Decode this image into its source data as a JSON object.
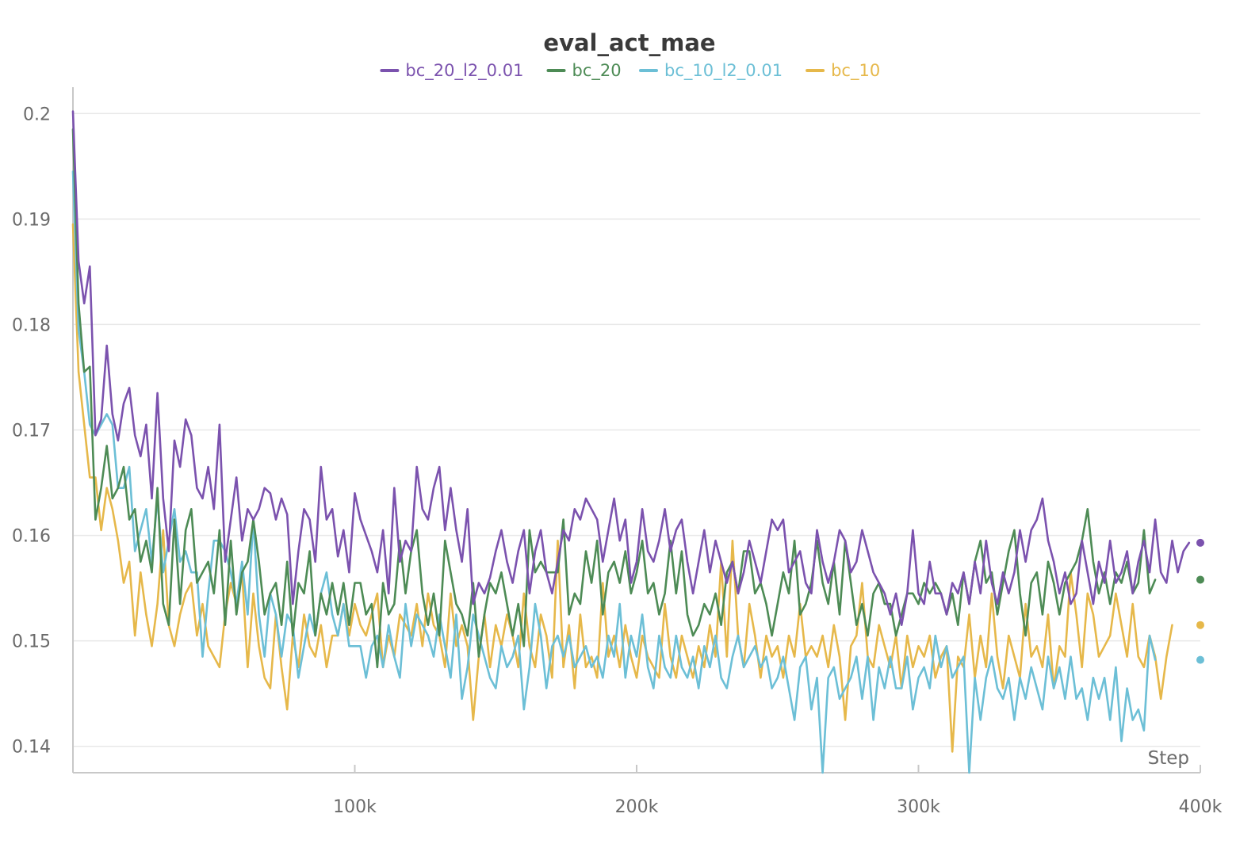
{
  "chart_data": {
    "type": "line",
    "title": "eval_act_mae",
    "xlabel": "Step",
    "ylabel": "",
    "xlim": [
      0,
      400000
    ],
    "ylim": [
      0.1375,
      0.2025
    ],
    "x_ticks": [
      100000,
      200000,
      300000,
      400000
    ],
    "x_tick_labels": [
      "100k",
      "200k",
      "300k",
      "400k"
    ],
    "y_ticks": [
      0.14,
      0.15,
      0.16,
      0.17,
      0.18,
      0.19,
      0.2
    ],
    "y_tick_labels": [
      "0.14",
      "0.15",
      "0.16",
      "0.17",
      "0.18",
      "0.19",
      "0.2"
    ],
    "grid": true,
    "legend_position": "top-center",
    "x_step": 2000,
    "series": [
      {
        "name": "bc_20_l2_0.01",
        "color": "#7b52ae",
        "values": [
          0.2002,
          0.186,
          0.182,
          0.1855,
          0.1695,
          0.171,
          0.178,
          0.1715,
          0.169,
          0.1725,
          0.174,
          0.1695,
          0.1675,
          0.1705,
          0.1635,
          0.1735,
          0.1635,
          0.1585,
          0.169,
          0.1665,
          0.171,
          0.1695,
          0.1645,
          0.1635,
          0.1665,
          0.1625,
          0.1705,
          0.1575,
          0.1615,
          0.1655,
          0.1595,
          0.1625,
          0.1615,
          0.1625,
          0.1645,
          0.164,
          0.1615,
          0.1635,
          0.162,
          0.1535,
          0.1585,
          0.1625,
          0.1615,
          0.1575,
          0.1665,
          0.1615,
          0.1625,
          0.158,
          0.1605,
          0.1565,
          0.164,
          0.1615,
          0.16,
          0.1585,
          0.1565,
          0.1605,
          0.1545,
          0.1645,
          0.1575,
          0.1595,
          0.1585,
          0.1665,
          0.1625,
          0.1615,
          0.1645,
          0.1665,
          0.1605,
          0.1645,
          0.1605,
          0.1575,
          0.1625,
          0.1535,
          0.1555,
          0.1545,
          0.156,
          0.1585,
          0.1605,
          0.1575,
          0.1555,
          0.1585,
          0.1605,
          0.1545,
          0.1585,
          0.1605,
          0.1565,
          0.1545,
          0.1575,
          0.1605,
          0.1595,
          0.1625,
          0.1615,
          0.1635,
          0.1625,
          0.1615,
          0.1575,
          0.1605,
          0.1635,
          0.1595,
          0.1615,
          0.1555,
          0.1575,
          0.1625,
          0.1585,
          0.1575,
          0.1595,
          0.1625,
          0.1585,
          0.1605,
          0.1615,
          0.1575,
          0.1545,
          0.1575,
          0.1605,
          0.1565,
          0.1595,
          0.1575,
          0.1555,
          0.1575,
          0.1545,
          0.1565,
          0.1595,
          0.1575,
          0.1555,
          0.1585,
          0.1615,
          0.1605,
          0.1615,
          0.1565,
          0.1575,
          0.1585,
          0.1555,
          0.1545,
          0.1605,
          0.1575,
          0.1555,
          0.1575,
          0.1605,
          0.1595,
          0.1565,
          0.1575,
          0.1605,
          0.1585,
          0.1565,
          0.1555,
          0.1545,
          0.1525,
          0.1545,
          0.1515,
          0.1545,
          0.1605,
          0.1545,
          0.1535,
          0.1575,
          0.1545,
          0.1545,
          0.1525,
          0.1555,
          0.1545,
          0.1565,
          0.1535,
          0.1575,
          0.1545,
          0.1595,
          0.1555,
          0.1535,
          0.1565,
          0.1545,
          0.1565,
          0.1605,
          0.1575,
          0.1605,
          0.1615,
          0.1635,
          0.1595,
          0.1575,
          0.1545,
          0.1565,
          0.1535,
          0.1545,
          0.1595,
          0.1565,
          0.1535,
          0.1575,
          0.1555,
          0.1595,
          0.1555,
          0.1565,
          0.1585,
          0.1545,
          0.1575,
          0.1595,
          0.1565,
          0.1615,
          0.1565,
          0.1555,
          0.1595,
          0.1565,
          0.1585,
          0.1593
        ]
      },
      {
        "name": "bc_20",
        "color": "#4d8b55",
        "values": [
          0.1985,
          0.182,
          0.1755,
          0.176,
          0.1615,
          0.1645,
          0.1685,
          0.1635,
          0.1645,
          0.1665,
          0.1615,
          0.1625,
          0.1575,
          0.1595,
          0.1565,
          0.1645,
          0.1535,
          0.1515,
          0.1615,
          0.1535,
          0.1605,
          0.1625,
          0.1555,
          0.1565,
          0.1575,
          0.1545,
          0.1605,
          0.1515,
          0.1595,
          0.1525,
          0.1565,
          0.1575,
          0.1615,
          0.1575,
          0.1525,
          0.1545,
          0.1555,
          0.1515,
          0.1575,
          0.1505,
          0.1555,
          0.1545,
          0.1585,
          0.1505,
          0.1545,
          0.1525,
          0.1555,
          0.1525,
          0.1555,
          0.1515,
          0.1555,
          0.1555,
          0.1525,
          0.1535,
          0.1475,
          0.1555,
          0.1525,
          0.1535,
          0.1595,
          0.1545,
          0.1585,
          0.1605,
          0.1545,
          0.1515,
          0.1545,
          0.1505,
          0.1595,
          0.1565,
          0.1535,
          0.1525,
          0.1505,
          0.1555,
          0.1485,
          0.1525,
          0.1555,
          0.1545,
          0.1565,
          0.1535,
          0.1505,
          0.1535,
          0.1495,
          0.1605,
          0.1565,
          0.1575,
          0.1565,
          0.1565,
          0.1565,
          0.1615,
          0.1525,
          0.1545,
          0.1535,
          0.1585,
          0.1555,
          0.1595,
          0.1525,
          0.1565,
          0.1575,
          0.1555,
          0.1585,
          0.1545,
          0.1565,
          0.1595,
          0.1545,
          0.1555,
          0.1525,
          0.1545,
          0.1595,
          0.1545,
          0.1585,
          0.1525,
          0.1505,
          0.1515,
          0.1535,
          0.1525,
          0.1545,
          0.1515,
          0.1565,
          0.1575,
          0.1545,
          0.1585,
          0.1585,
          0.1545,
          0.1555,
          0.1535,
          0.1505,
          0.1535,
          0.1565,
          0.1545,
          0.1595,
          0.1525,
          0.1535,
          0.1555,
          0.1595,
          0.1555,
          0.1535,
          0.1575,
          0.1525,
          0.1595,
          0.1555,
          0.1515,
          0.1535,
          0.1505,
          0.1545,
          0.1555,
          0.1535,
          0.1535,
          0.1505,
          0.1525,
          0.1545,
          0.1545,
          0.1535,
          0.1555,
          0.1545,
          0.1555,
          0.1545,
          0.1525,
          0.1545,
          0.1515,
          0.1565,
          0.1535,
          0.1575,
          0.1595,
          0.1555,
          0.1565,
          0.1525,
          0.1555,
          0.1585,
          0.1605,
          0.1545,
          0.1505,
          0.1555,
          0.1565,
          0.1525,
          0.1575,
          0.1555,
          0.1525,
          0.1555,
          0.1565,
          0.1575,
          0.1595,
          0.1625,
          0.1575,
          0.1545,
          0.1565,
          0.1535,
          0.1565,
          0.1555,
          0.1575,
          0.1545,
          0.1555,
          0.1605,
          0.1545,
          0.1558
        ]
      },
      {
        "name": "bc_10_l2_0.01",
        "color": "#6cbfd6",
        "values": [
          0.1945,
          0.1795,
          0.1755,
          0.1705,
          0.1695,
          0.1705,
          0.1715,
          0.1705,
          0.1645,
          0.1645,
          0.1665,
          0.1585,
          0.1605,
          0.1625,
          0.1575,
          0.1635,
          0.1565,
          0.1595,
          0.1625,
          0.1575,
          0.1585,
          0.1565,
          0.1565,
          0.1485,
          0.1545,
          0.1595,
          0.1595,
          0.1585,
          0.1565,
          0.1535,
          0.1575,
          0.1525,
          0.1615,
          0.1525,
          0.1485,
          0.1545,
          0.1525,
          0.1485,
          0.1525,
          0.1515,
          0.1465,
          0.1495,
          0.1525,
          0.1505,
          0.1545,
          0.1565,
          0.1525,
          0.1505,
          0.1535,
          0.1495,
          0.1495,
          0.1495,
          0.1465,
          0.1495,
          0.1505,
          0.1475,
          0.1515,
          0.1485,
          0.1465,
          0.1535,
          0.1495,
          0.1525,
          0.1515,
          0.1505,
          0.1485,
          0.1525,
          0.1495,
          0.1465,
          0.1525,
          0.1445,
          0.1475,
          0.1525,
          0.1505,
          0.1485,
          0.1465,
          0.1455,
          0.1495,
          0.1475,
          0.1485,
          0.1505,
          0.1435,
          0.1475,
          0.1535,
          0.1505,
          0.1455,
          0.1495,
          0.1505,
          0.1485,
          0.1505,
          0.1475,
          0.1485,
          0.1495,
          0.1475,
          0.1485,
          0.1465,
          0.1505,
          0.1485,
          0.1535,
          0.1465,
          0.1505,
          0.1485,
          0.1525,
          0.1475,
          0.1455,
          0.1505,
          0.1475,
          0.1465,
          0.1505,
          0.1475,
          0.1465,
          0.1485,
          0.1455,
          0.1495,
          0.1475,
          0.1505,
          0.1465,
          0.1455,
          0.1485,
          0.1505,
          0.1475,
          0.1485,
          0.1495,
          0.1475,
          0.1485,
          0.1455,
          0.1465,
          0.1485,
          0.1455,
          0.1425,
          0.1475,
          0.1485,
          0.1435,
          0.1465,
          0.1375,
          0.1465,
          0.1475,
          0.1445,
          0.1455,
          0.1465,
          0.1485,
          0.1445,
          0.1485,
          0.1425,
          0.1475,
          0.1455,
          0.1485,
          0.1455,
          0.1455,
          0.1485,
          0.1435,
          0.1465,
          0.1475,
          0.1455,
          0.1505,
          0.1475,
          0.1495,
          0.1465,
          0.1475,
          0.1485,
          0.1375,
          0.1465,
          0.1425,
          0.1465,
          0.1485,
          0.1455,
          0.1445,
          0.1465,
          0.1425,
          0.1465,
          0.1445,
          0.1475,
          0.1455,
          0.1435,
          0.1485,
          0.1455,
          0.1475,
          0.1445,
          0.1485,
          0.1445,
          0.1455,
          0.1425,
          0.1465,
          0.1445,
          0.1465,
          0.1425,
          0.1475,
          0.1405,
          0.1455,
          0.1425,
          0.1435,
          0.1415,
          0.1505,
          0.1482
        ]
      },
      {
        "name": "bc_10",
        "color": "#e6b84a",
        "values": [
          0.1895,
          0.1755,
          0.1705,
          0.1655,
          0.1655,
          0.1605,
          0.1645,
          0.1625,
          0.1595,
          0.1555,
          0.1575,
          0.1505,
          0.1565,
          0.1525,
          0.1495,
          0.1535,
          0.1605,
          0.1515,
          0.1495,
          0.1525,
          0.1545,
          0.1555,
          0.1505,
          0.1535,
          0.1495,
          0.1485,
          0.1475,
          0.1525,
          0.1555,
          0.1535,
          0.1565,
          0.1475,
          0.1545,
          0.1495,
          0.1465,
          0.1455,
          0.1525,
          0.1475,
          0.1435,
          0.1505,
          0.1475,
          0.1525,
          0.1495,
          0.1485,
          0.1515,
          0.1475,
          0.1505,
          0.1505,
          0.1535,
          0.1505,
          0.1535,
          0.1515,
          0.1505,
          0.1525,
          0.1545,
          0.1475,
          0.1505,
          0.1485,
          0.1525,
          0.1515,
          0.1505,
          0.1535,
          0.1495,
          0.1545,
          0.1515,
          0.1505,
          0.1475,
          0.1545,
          0.1495,
          0.1515,
          0.1495,
          0.1425,
          0.1485,
          0.1525,
          0.1475,
          0.1515,
          0.1495,
          0.1525,
          0.1505,
          0.1475,
          0.1545,
          0.1495,
          0.1475,
          0.1525,
          0.1505,
          0.1465,
          0.1595,
          0.1475,
          0.1515,
          0.1455,
          0.1525,
          0.1475,
          0.1485,
          0.1465,
          0.1555,
          0.1485,
          0.1505,
          0.1475,
          0.1515,
          0.1485,
          0.1465,
          0.1505,
          0.1485,
          0.1475,
          0.1465,
          0.1535,
          0.1485,
          0.1465,
          0.1505,
          0.1485,
          0.1465,
          0.1495,
          0.1475,
          0.1515,
          0.1485,
          0.1575,
          0.1485,
          0.1595,
          0.1505,
          0.1475,
          0.1535,
          0.1505,
          0.1465,
          0.1505,
          0.1485,
          0.1495,
          0.1465,
          0.1505,
          0.1485,
          0.1535,
          0.1485,
          0.1495,
          0.1485,
          0.1505,
          0.1475,
          0.1515,
          0.1485,
          0.1425,
          0.1495,
          0.1505,
          0.1555,
          0.1485,
          0.1475,
          0.1515,
          0.1495,
          0.1475,
          0.1505,
          0.1455,
          0.1505,
          0.1475,
          0.1495,
          0.1485,
          0.1505,
          0.1465,
          0.1485,
          0.1495,
          0.1395,
          0.1485,
          0.1475,
          0.1525,
          0.1465,
          0.1505,
          0.1475,
          0.1545,
          0.1485,
          0.1455,
          0.1505,
          0.1485,
          0.1465,
          0.1535,
          0.1485,
          0.1495,
          0.1475,
          0.1525,
          0.1455,
          0.1495,
          0.1485,
          0.1565,
          0.1525,
          0.1475,
          0.1545,
          0.1525,
          0.1485,
          0.1495,
          0.1505,
          0.1545,
          0.1515,
          0.1485,
          0.1535,
          0.1485,
          0.1475,
          0.1505,
          0.1485,
          0.1445,
          0.1485,
          0.1515
        ]
      }
    ]
  }
}
